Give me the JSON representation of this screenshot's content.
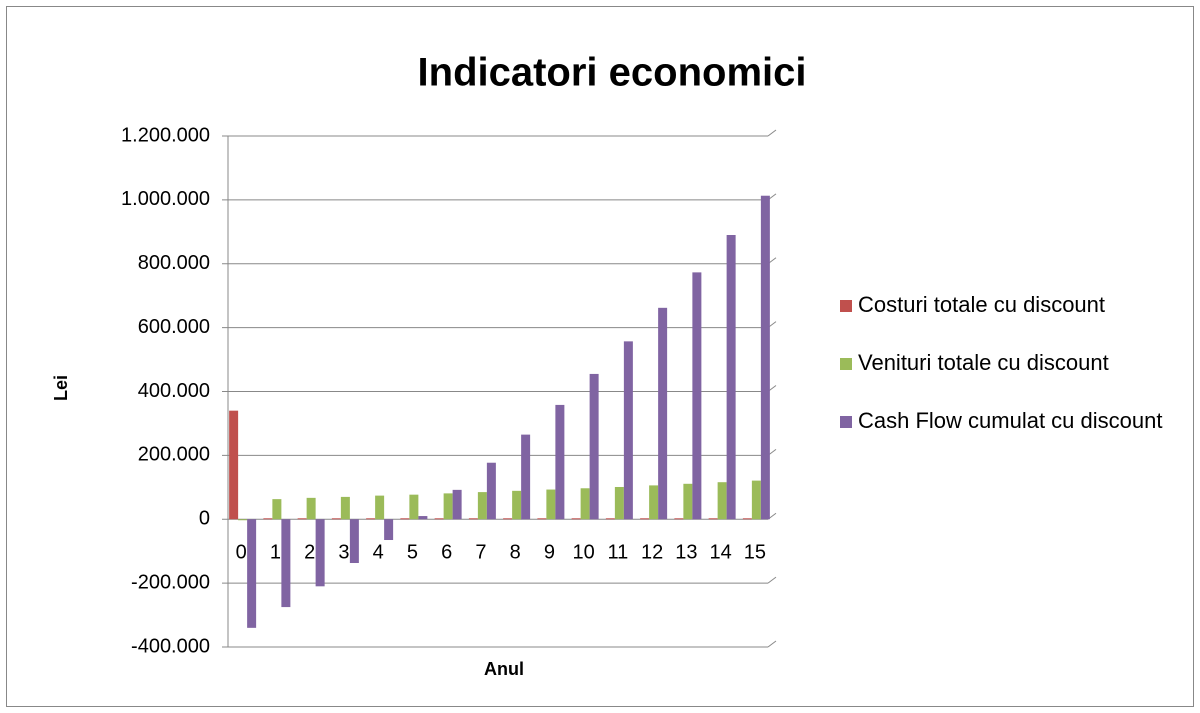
{
  "chart_data": {
    "type": "bar",
    "title": "Indicatori economici",
    "x_label": "Anul",
    "y_label": "Lei",
    "categories": [
      "0",
      "1",
      "2",
      "3",
      "4",
      "5",
      "6",
      "7",
      "8",
      "9",
      "10",
      "11",
      "12",
      "13",
      "14",
      "15"
    ],
    "series": [
      {
        "name": "Costuri totale cu discount",
        "color": "#c0504d",
        "values": [
          340000,
          3000,
          3000,
          3000,
          3000,
          3000,
          3000,
          3000,
          3000,
          3000,
          3000,
          3000,
          3000,
          3000,
          3000,
          3000
        ]
      },
      {
        "name": "Venituri totale cu discount",
        "color": "#9bbb59",
        "values": [
          0,
          63000,
          67000,
          70000,
          74000,
          77000,
          81000,
          85000,
          89000,
          93000,
          97000,
          101000,
          106000,
          111000,
          116000,
          121000
        ]
      },
      {
        "name": "Cash Flow cumulat cu discount",
        "color": "#8064a2",
        "values": [
          -340000,
          -275000,
          -210000,
          -137000,
          -65000,
          10000,
          92000,
          177000,
          265000,
          358000,
          455000,
          557000,
          662000,
          773000,
          890000,
          1013000
        ]
      }
    ],
    "ylim": [
      -400000,
      1200000
    ],
    "yticks": [
      {
        "value": -400000,
        "label": "-400.000"
      },
      {
        "value": -200000,
        "label": "-200.000"
      },
      0,
      {
        "value": 200000,
        "label": "200.000"
      },
      {
        "value": 400000,
        "label": "400.000"
      },
      {
        "value": 600000,
        "label": "600.000"
      },
      {
        "value": 800000,
        "label": "800.000"
      },
      {
        "value": 1000000,
        "label": "1.000.000"
      },
      {
        "value": 1200000,
        "label": "1.200.000"
      }
    ],
    "grid": true,
    "legend": "right"
  }
}
